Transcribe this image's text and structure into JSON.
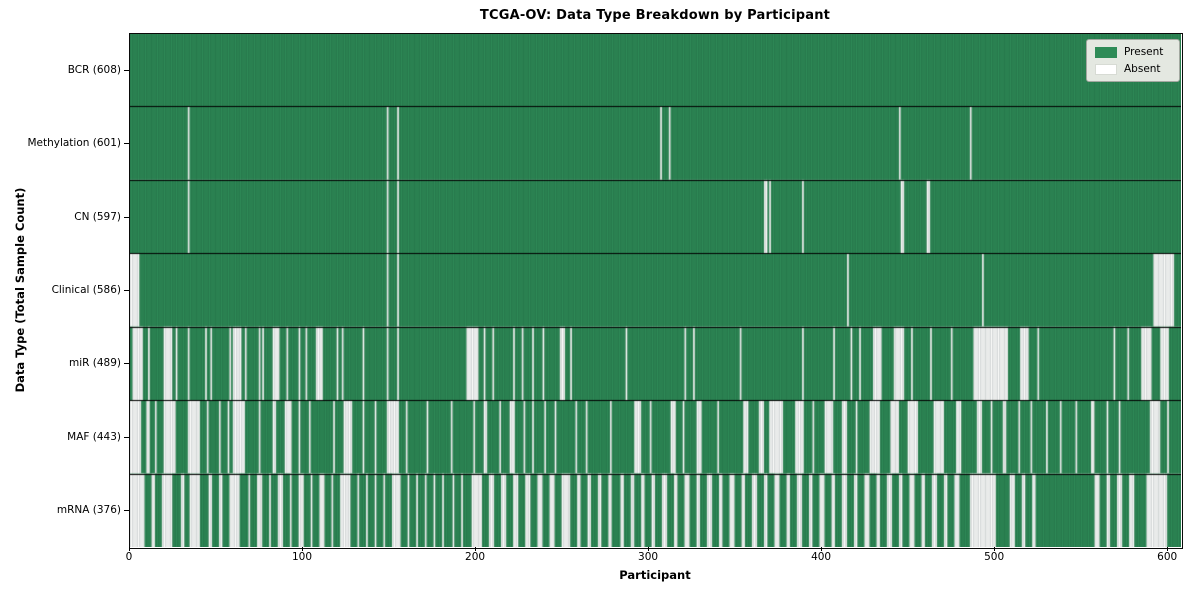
{
  "title": "TCGA-OV: Data Type Breakdown by Participant",
  "xlabel": "Participant",
  "ylabel": "Data Type (Total Sample Count)",
  "legend": {
    "present_label": "Present",
    "absent_label": "Absent"
  },
  "colors": {
    "present": "#2e8b57",
    "absent": "#ffffff",
    "bar_edge": "rgba(10,40,25,0.30)",
    "row_separator": "#000000",
    "axis": "#000000",
    "legend_face": "#e4e8e1",
    "legend_edge": "#a3a8a0"
  },
  "chart_data": {
    "type": "heatmap",
    "title": "TCGA-OV: Data Type Breakdown by Participant",
    "xlabel": "Participant",
    "ylabel": "Data Type (Total Sample Count)",
    "legend_entries": [
      "Present",
      "Absent"
    ],
    "legend_position": "upper right",
    "grid": false,
    "n_participants": 608,
    "x_ticks": [
      0,
      100,
      200,
      300,
      400,
      500,
      600
    ],
    "xlim": [
      0,
      608
    ],
    "encoding": "binary presence (green) / absence (white) per participant; absent_ranges are inclusive participant index ranges",
    "rows": [
      {
        "data_type": "BCR",
        "label": "BCR (608)",
        "present_count": 608,
        "absent_count": 0,
        "absent_ranges": []
      },
      {
        "data_type": "Methylation",
        "label": "Methylation (601)",
        "present_count": 601,
        "absent_count": 7,
        "absent_ranges": [
          [
            34,
            34
          ],
          [
            149,
            149
          ],
          [
            155,
            155
          ],
          [
            307,
            307
          ],
          [
            312,
            312
          ],
          [
            445,
            445
          ],
          [
            486,
            486
          ]
        ]
      },
      {
        "data_type": "CN",
        "label": "CN (597)",
        "present_count": 597,
        "absent_count": 11,
        "absent_ranges": [
          [
            34,
            34
          ],
          [
            149,
            149
          ],
          [
            155,
            155
          ],
          [
            367,
            368
          ],
          [
            370,
            370
          ],
          [
            389,
            389
          ],
          [
            446,
            447
          ],
          [
            461,
            462
          ]
        ]
      },
      {
        "data_type": "Clinical",
        "label": "Clinical (586)",
        "present_count": 586,
        "absent_count": 22,
        "absent_ranges": [
          [
            0,
            5
          ],
          [
            149,
            149
          ],
          [
            155,
            155
          ],
          [
            415,
            415
          ],
          [
            493,
            493
          ],
          [
            592,
            603
          ]
        ]
      },
      {
        "data_type": "miR",
        "label": "miR (489)",
        "present_count": 489,
        "absent_count": 119,
        "absent_ranges": [
          [
            2,
            7
          ],
          [
            11,
            11
          ],
          [
            20,
            24
          ],
          [
            27,
            27
          ],
          [
            34,
            34
          ],
          [
            44,
            44
          ],
          [
            47,
            47
          ],
          [
            58,
            58
          ],
          [
            60,
            64
          ],
          [
            67,
            67
          ],
          [
            75,
            75
          ],
          [
            77,
            77
          ],
          [
            83,
            86
          ],
          [
            91,
            91
          ],
          [
            98,
            98
          ],
          [
            102,
            102
          ],
          [
            108,
            111
          ],
          [
            120,
            120
          ],
          [
            123,
            123
          ],
          [
            135,
            135
          ],
          [
            149,
            149
          ],
          [
            155,
            155
          ],
          [
            195,
            201
          ],
          [
            205,
            205
          ],
          [
            210,
            210
          ],
          [
            222,
            222
          ],
          [
            227,
            227
          ],
          [
            233,
            233
          ],
          [
            239,
            239
          ],
          [
            249,
            251
          ],
          [
            255,
            255
          ],
          [
            287,
            287
          ],
          [
            321,
            321
          ],
          [
            326,
            326
          ],
          [
            353,
            353
          ],
          [
            389,
            389
          ],
          [
            407,
            407
          ],
          [
            417,
            417
          ],
          [
            422,
            422
          ],
          [
            430,
            434
          ],
          [
            442,
            447
          ],
          [
            452,
            452
          ],
          [
            463,
            463
          ],
          [
            475,
            475
          ],
          [
            488,
            507
          ],
          [
            515,
            519
          ],
          [
            525,
            525
          ],
          [
            569,
            569
          ],
          [
            577,
            577
          ],
          [
            585,
            590
          ],
          [
            596,
            600
          ]
        ]
      },
      {
        "data_type": "MAF",
        "label": "MAF (443)",
        "present_count": 443,
        "absent_count": 165,
        "absent_ranges": [
          [
            0,
            6
          ],
          [
            10,
            11
          ],
          [
            15,
            15
          ],
          [
            20,
            26
          ],
          [
            34,
            40
          ],
          [
            45,
            45
          ],
          [
            52,
            52
          ],
          [
            57,
            57
          ],
          [
            60,
            66
          ],
          [
            75,
            75
          ],
          [
            83,
            84
          ],
          [
            90,
            93
          ],
          [
            98,
            98
          ],
          [
            104,
            104
          ],
          [
            118,
            118
          ],
          [
            124,
            128
          ],
          [
            135,
            135
          ],
          [
            142,
            142
          ],
          [
            149,
            155
          ],
          [
            160,
            160
          ],
          [
            172,
            172
          ],
          [
            186,
            186
          ],
          [
            199,
            199
          ],
          [
            205,
            206
          ],
          [
            214,
            214
          ],
          [
            220,
            222
          ],
          [
            228,
            228
          ],
          [
            233,
            233
          ],
          [
            240,
            240
          ],
          [
            246,
            246
          ],
          [
            258,
            258
          ],
          [
            264,
            264
          ],
          [
            278,
            278
          ],
          [
            292,
            295
          ],
          [
            301,
            301
          ],
          [
            313,
            315
          ],
          [
            320,
            320
          ],
          [
            328,
            330
          ],
          [
            340,
            340
          ],
          [
            355,
            357
          ],
          [
            364,
            366
          ],
          [
            370,
            377
          ],
          [
            385,
            389
          ],
          [
            395,
            395
          ],
          [
            402,
            406
          ],
          [
            412,
            414
          ],
          [
            420,
            420
          ],
          [
            428,
            433
          ],
          [
            440,
            444
          ],
          [
            450,
            455
          ],
          [
            465,
            470
          ],
          [
            478,
            480
          ],
          [
            490,
            492
          ],
          [
            498,
            498
          ],
          [
            505,
            506
          ],
          [
            514,
            514
          ],
          [
            521,
            521
          ],
          [
            530,
            530
          ],
          [
            538,
            538
          ],
          [
            547,
            547
          ],
          [
            556,
            557
          ],
          [
            565,
            565
          ],
          [
            572,
            572
          ],
          [
            590,
            595
          ],
          [
            600,
            600
          ]
        ]
      },
      {
        "data_type": "mRNA",
        "label": "mRNA (376)",
        "present_count": 376,
        "absent_count": 232,
        "absent_ranges": [
          [
            0,
            8
          ],
          [
            13,
            14
          ],
          [
            19,
            24
          ],
          [
            30,
            31
          ],
          [
            35,
            40
          ],
          [
            46,
            47
          ],
          [
            52,
            53
          ],
          [
            58,
            63
          ],
          [
            69,
            69
          ],
          [
            74,
            76
          ],
          [
            81,
            81
          ],
          [
            86,
            88
          ],
          [
            93,
            93
          ],
          [
            98,
            100
          ],
          [
            105,
            105
          ],
          [
            110,
            112
          ],
          [
            117,
            117
          ],
          [
            122,
            127
          ],
          [
            132,
            132
          ],
          [
            137,
            137
          ],
          [
            142,
            142
          ],
          [
            147,
            147
          ],
          [
            152,
            156
          ],
          [
            161,
            161
          ],
          [
            166,
            166
          ],
          [
            171,
            171
          ],
          [
            176,
            176
          ],
          [
            181,
            181
          ],
          [
            187,
            187
          ],
          [
            192,
            192
          ],
          [
            198,
            203
          ],
          [
            208,
            210
          ],
          [
            215,
            217
          ],
          [
            222,
            224
          ],
          [
            229,
            231
          ],
          [
            236,
            238
          ],
          [
            243,
            245
          ],
          [
            250,
            254
          ],
          [
            259,
            260
          ],
          [
            265,
            266
          ],
          [
            271,
            272
          ],
          [
            277,
            278
          ],
          [
            284,
            285
          ],
          [
            290,
            291
          ],
          [
            296,
            297
          ],
          [
            302,
            303
          ],
          [
            308,
            310
          ],
          [
            315,
            316
          ],
          [
            321,
            323
          ],
          [
            328,
            329
          ],
          [
            334,
            336
          ],
          [
            341,
            342
          ],
          [
            347,
            349
          ],
          [
            354,
            355
          ],
          [
            360,
            362
          ],
          [
            367,
            368
          ],
          [
            373,
            375
          ],
          [
            380,
            381
          ],
          [
            386,
            388
          ],
          [
            393,
            394
          ],
          [
            399,
            401
          ],
          [
            406,
            407
          ],
          [
            412,
            414
          ],
          [
            419,
            420
          ],
          [
            425,
            427
          ],
          [
            432,
            433
          ],
          [
            438,
            440
          ],
          [
            445,
            446
          ],
          [
            451,
            453
          ],
          [
            458,
            459
          ],
          [
            464,
            466
          ],
          [
            471,
            472
          ],
          [
            477,
            479
          ],
          [
            486,
            500
          ],
          [
            509,
            511
          ],
          [
            516,
            517
          ],
          [
            522,
            523
          ],
          [
            558,
            560
          ],
          [
            565,
            566
          ],
          [
            571,
            573
          ],
          [
            578,
            580
          ],
          [
            588,
            599
          ]
        ]
      }
    ]
  }
}
